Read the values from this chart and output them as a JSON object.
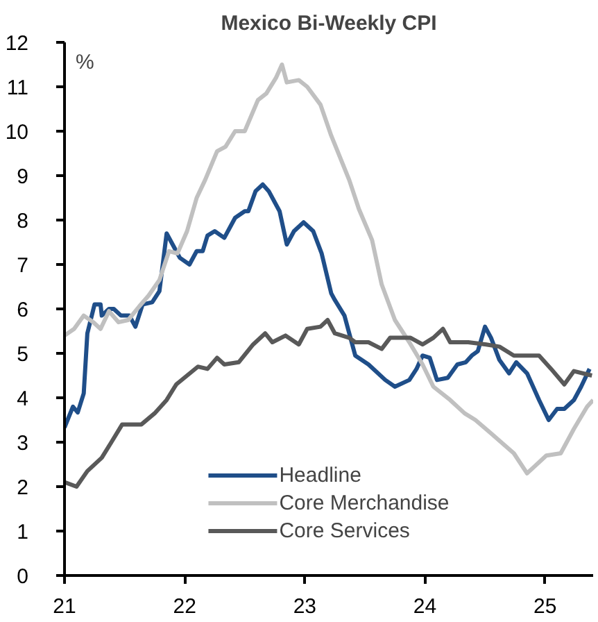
{
  "chart_data": {
    "type": "line",
    "title": "Mexico Bi-Weekly CPI",
    "annotations": [
      "%"
    ],
    "xlim": [
      21,
      25.4
    ],
    "xticks": [
      {
        "value": 21,
        "label": "21"
      },
      {
        "value": 22,
        "label": "22"
      },
      {
        "value": 23,
        "label": "23"
      },
      {
        "value": 24,
        "label": "24"
      },
      {
        "value": 25,
        "label": "25"
      }
    ],
    "ylim": [
      0,
      12
    ],
    "yticks": [
      0,
      1,
      2,
      3,
      4,
      5,
      6,
      7,
      8,
      9,
      10,
      11,
      12
    ],
    "grid": false,
    "legend": "bottom",
    "marker": "none",
    "line_style": "solid",
    "series": [
      {
        "name": "Headline",
        "color": "#1f4e89",
        "x": [
          21.0,
          21.07,
          21.11,
          21.16,
          21.19,
          21.25,
          21.3,
          21.31,
          21.37,
          21.41,
          21.47,
          21.54,
          21.59,
          21.65,
          21.73,
          21.79,
          21.85,
          21.9,
          21.96,
          22.04,
          22.1,
          22.15,
          22.19,
          22.25,
          22.33,
          22.42,
          22.5,
          22.53,
          22.59,
          22.65,
          22.7,
          22.79,
          22.85,
          22.91,
          22.99,
          23.07,
          23.14,
          23.22,
          23.25,
          23.33,
          23.42,
          23.53,
          23.67,
          23.75,
          23.87,
          23.93,
          23.98,
          24.04,
          24.1,
          24.19,
          24.27,
          24.34,
          24.39,
          24.44,
          24.5,
          24.55,
          24.62,
          24.7,
          24.76,
          24.85,
          24.95,
          25.03,
          25.1,
          25.16,
          25.24,
          25.3,
          25.37
        ],
        "values": [
          3.33,
          3.8,
          3.67,
          4.1,
          5.45,
          6.1,
          6.1,
          5.85,
          6.0,
          6.0,
          5.85,
          5.85,
          5.6,
          6.1,
          6.15,
          6.4,
          7.7,
          7.45,
          7.15,
          7.0,
          7.3,
          7.3,
          7.65,
          7.75,
          7.6,
          8.05,
          8.2,
          8.2,
          8.65,
          8.8,
          8.65,
          8.2,
          7.45,
          7.75,
          7.95,
          7.75,
          7.25,
          6.35,
          6.2,
          5.85,
          4.95,
          4.75,
          4.4,
          4.25,
          4.4,
          4.65,
          4.95,
          4.9,
          4.4,
          4.45,
          4.75,
          4.8,
          4.95,
          5.05,
          5.6,
          5.35,
          4.85,
          4.55,
          4.8,
          4.55,
          3.95,
          3.5,
          3.75,
          3.75,
          3.95,
          4.25,
          4.65
        ]
      },
      {
        "name": "Core Merchandise",
        "color": "#c0c0c0",
        "x": [
          21.0,
          21.08,
          21.16,
          21.24,
          21.3,
          21.37,
          21.45,
          21.53,
          21.62,
          21.7,
          21.79,
          21.87,
          21.94,
          22.02,
          22.1,
          22.17,
          22.27,
          22.34,
          22.42,
          22.5,
          22.61,
          22.68,
          22.76,
          22.81,
          22.85,
          22.95,
          23.02,
          23.13,
          23.22,
          23.25,
          23.37,
          23.45,
          23.56,
          23.64,
          23.75,
          23.87,
          23.98,
          24.07,
          24.21,
          24.33,
          24.42,
          24.55,
          24.74,
          24.85,
          25.01,
          25.13,
          25.24,
          25.35,
          25.4
        ],
        "values": [
          5.4,
          5.55,
          5.85,
          5.7,
          5.55,
          5.95,
          5.7,
          5.75,
          6.05,
          6.3,
          6.65,
          7.3,
          7.25,
          7.75,
          8.5,
          8.9,
          9.55,
          9.65,
          10.0,
          10.0,
          10.7,
          10.85,
          11.2,
          11.5,
          11.1,
          11.15,
          11.0,
          10.6,
          9.9,
          9.7,
          8.9,
          8.25,
          7.55,
          6.55,
          5.75,
          5.25,
          4.75,
          4.25,
          3.95,
          3.65,
          3.5,
          3.2,
          2.75,
          2.3,
          2.7,
          2.75,
          3.3,
          3.8,
          3.95
        ]
      },
      {
        "name": "Core Services",
        "color": "#595959",
        "x": [
          21.0,
          21.1,
          21.19,
          21.31,
          21.39,
          21.48,
          21.64,
          21.75,
          21.85,
          21.93,
          22.02,
          22.11,
          22.19,
          22.27,
          22.33,
          22.45,
          22.57,
          22.67,
          22.73,
          22.84,
          22.95,
          23.02,
          23.13,
          23.19,
          23.25,
          23.37,
          23.42,
          23.53,
          23.64,
          23.71,
          23.88,
          23.98,
          24.07,
          24.15,
          24.21,
          24.36,
          24.51,
          24.62,
          24.74,
          24.84,
          24.95,
          25.05,
          25.16,
          25.24,
          25.39
        ],
        "values": [
          2.1,
          2.0,
          2.35,
          2.65,
          3.0,
          3.4,
          3.4,
          3.65,
          3.95,
          4.3,
          4.5,
          4.7,
          4.65,
          4.9,
          4.75,
          4.8,
          5.2,
          5.45,
          5.25,
          5.4,
          5.2,
          5.55,
          5.6,
          5.75,
          5.45,
          5.35,
          5.25,
          5.25,
          5.1,
          5.35,
          5.35,
          5.2,
          5.35,
          5.55,
          5.25,
          5.25,
          5.2,
          5.15,
          4.95,
          4.95,
          4.95,
          4.65,
          4.3,
          4.6,
          4.5
        ]
      }
    ]
  }
}
